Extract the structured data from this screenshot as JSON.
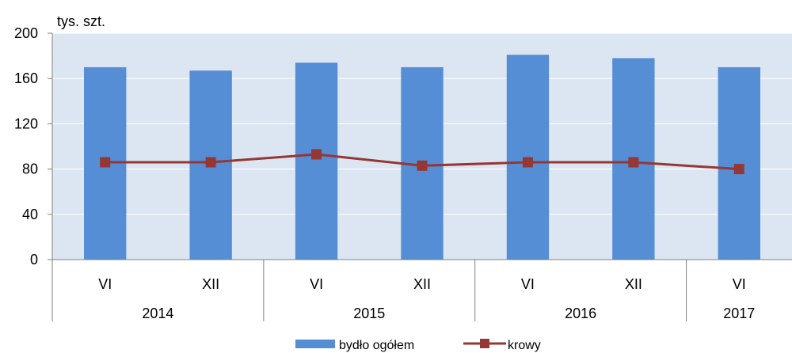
{
  "chart_data": {
    "type": "bar",
    "unit_label": "tys. szt.",
    "categories": [
      "VI",
      "XII",
      "VI",
      "XII",
      "VI",
      "XII",
      "VI"
    ],
    "groups": [
      {
        "label": "2014",
        "count": 2
      },
      {
        "label": "2015",
        "count": 2
      },
      {
        "label": "2016",
        "count": 2
      },
      {
        "label": "2017",
        "count": 1
      }
    ],
    "series": [
      {
        "name": "bydło ogółem",
        "type": "bar",
        "color": "#558ED5",
        "values": [
          170,
          167,
          174,
          170,
          181,
          178,
          170
        ]
      },
      {
        "name": "krowy",
        "type": "line",
        "color": "#953735",
        "values": [
          86,
          86,
          93,
          83,
          86,
          86,
          80
        ]
      }
    ],
    "ylim": [
      0,
      200
    ],
    "yticks": [
      0,
      40,
      80,
      120,
      160,
      200
    ],
    "plot_background": "#DCE6F2",
    "grid": true,
    "legend": "bottom"
  }
}
